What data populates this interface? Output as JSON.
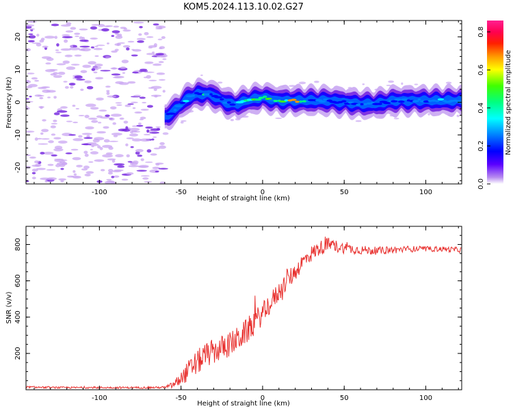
{
  "title": "KOM5.2024.113.10.02.G27",
  "colors": {
    "snr_line": "#e8302e",
    "speckle": "#c9a6f2",
    "speckle_dark": "#7a2ee0",
    "axis": "#000000"
  },
  "chart_data": [
    {
      "type": "heatmap",
      "name": "spectrogram",
      "xlabel": "Height of straight line (km)",
      "ylabel": "Frequency (Hz)",
      "xlim": [
        -145,
        122
      ],
      "ylim": [
        -25,
        25
      ],
      "xticks": [
        -100,
        -50,
        0,
        50,
        100
      ],
      "xtick_labels": [
        "-100",
        "-50",
        "0",
        "50",
        "100"
      ],
      "yticks": [
        -20,
        -10,
        0,
        10,
        20
      ],
      "ytick_labels": [
        "-20",
        "-10",
        "0",
        "10",
        "20"
      ],
      "ridge": {
        "x": [
          -60,
          -55,
          -50,
          -45,
          -40,
          -35,
          -30,
          -25,
          -20,
          -15,
          -10,
          -5,
          0,
          5,
          10,
          20,
          30,
          40,
          50,
          60,
          70,
          80,
          90,
          100,
          110,
          122
        ],
        "y": [
          -4.5,
          -3,
          -0.5,
          1.5,
          2.5,
          2.5,
          2,
          0.5,
          -0.5,
          -0.5,
          0.5,
          1,
          1.5,
          1,
          0.5,
          0.5,
          0.5,
          0.5,
          0,
          -0.5,
          -0.5,
          0.5,
          0.5,
          0.5,
          0.5,
          0.5
        ],
        "peak_amplitude": [
          0.3,
          0.4,
          0.45,
          0.45,
          0.4,
          0.5,
          0.35,
          0.3,
          0.35,
          0.4,
          0.45,
          0.65,
          0.55,
          0.6,
          0.55,
          0.85,
          0.4,
          0.35,
          0.3,
          0.35,
          0.3,
          0.3,
          0.35,
          0.35,
          0.4,
          0.35
        ]
      },
      "colorbar": {
        "label": "Normalized spectral amplitude",
        "range": [
          0,
          0.86
        ],
        "ticks": [
          0.0,
          0.2,
          0.4,
          0.6,
          0.8
        ],
        "tick_labels": [
          "0.0",
          "0.2",
          "0.4",
          "0.6",
          "0.8"
        ],
        "colormap": "hsv"
      }
    },
    {
      "type": "line",
      "name": "snr",
      "xlabel": "Height of straight line (km)",
      "ylabel": "SNR (v/v)",
      "xlim": [
        -145,
        122
      ],
      "ylim": [
        0,
        900
      ],
      "xticks": [
        -100,
        -50,
        0,
        50,
        100
      ],
      "xtick_labels": [
        "-100",
        "-50",
        "0",
        "50",
        "100"
      ],
      "yticks": [
        200,
        400,
        600,
        800
      ],
      "ytick_labels": [
        "200",
        "400",
        "600",
        "800"
      ],
      "series": [
        {
          "x": [
            -145,
            -130,
            -110,
            -90,
            -70,
            -60,
            -55,
            -50,
            -45,
            -40,
            -35,
            -30,
            -25,
            -20,
            -15,
            -10,
            -5,
            0,
            5,
            10,
            15,
            20,
            25,
            30,
            35,
            40,
            45,
            50,
            60,
            70,
            80,
            90,
            100,
            110,
            122
          ],
          "y": [
            15,
            12,
            12,
            12,
            12,
            13,
            25,
            60,
            110,
            150,
            190,
            210,
            230,
            250,
            280,
            320,
            370,
            420,
            480,
            540,
            600,
            650,
            710,
            750,
            780,
            800,
            790,
            780,
            770,
            765,
            770,
            775,
            775,
            775,
            770
          ],
          "noise": [
            5,
            5,
            5,
            5,
            5,
            6,
            20,
            40,
            60,
            70,
            70,
            70,
            70,
            70,
            70,
            70,
            70,
            60,
            60,
            55,
            55,
            50,
            45,
            45,
            40,
            40,
            35,
            30,
            25,
            22,
            20,
            18,
            15,
            15,
            15
          ]
        }
      ]
    }
  ]
}
